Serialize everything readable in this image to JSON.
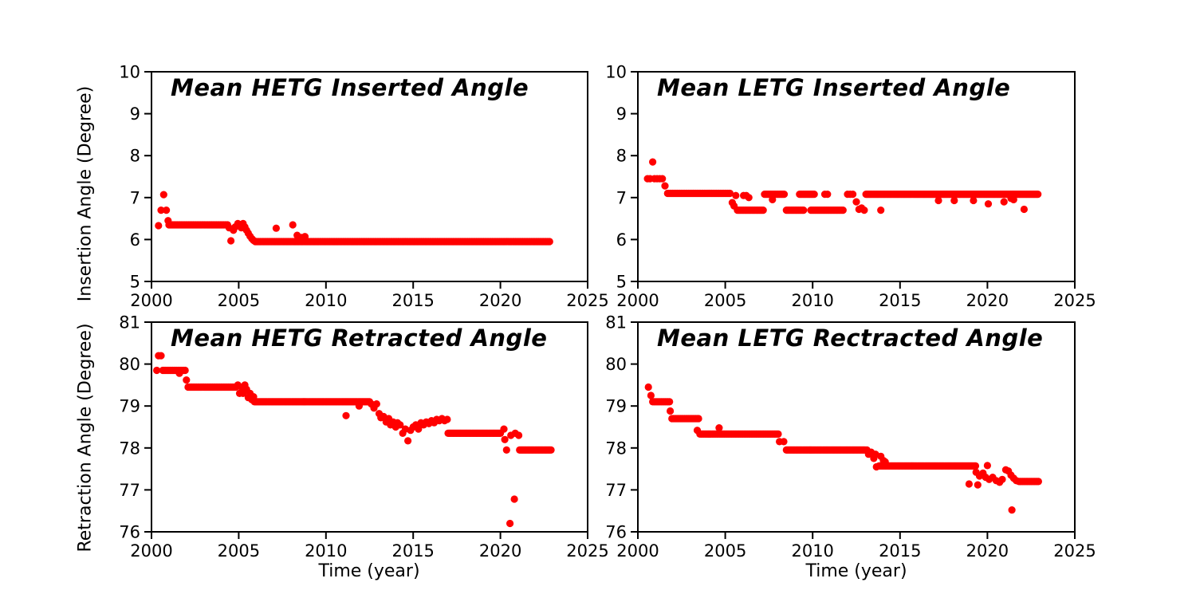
{
  "figure": {
    "background": "#ffffff",
    "axis_color": "#000000",
    "marker_color": "#ff0000"
  },
  "chart_data": [
    {
      "id": "hetg-inserted",
      "type": "scatter",
      "title": "Mean HETG Inserted Angle",
      "xlabel": "",
      "ylabel": "Insertion Angle (Degree)",
      "xlim": [
        2000,
        2025
      ],
      "ylim": [
        5,
        10
      ],
      "x_ticks": [
        2000,
        2005,
        2010,
        2015,
        2020,
        2025
      ],
      "y_ticks": [
        5,
        6,
        7,
        8,
        9,
        10
      ],
      "grid": false,
      "legend": "none",
      "marker_color": "#ff0000",
      "series": [
        {
          "name": "mean inserted angle",
          "plateaus": [
            {
              "x0": 2001.0,
              "x1": 2004.35,
              "y": 6.35,
              "step": 0.07
            },
            {
              "x0": 2005.95,
              "x1": 2022.85,
              "y": 5.95,
              "step": 0.07
            }
          ],
          "points": [
            [
              2000.4,
              6.33
            ],
            [
              2000.55,
              6.7
            ],
            [
              2000.7,
              7.07
            ],
            [
              2000.85,
              6.7
            ],
            [
              2000.95,
              6.45
            ],
            [
              2004.45,
              6.28
            ],
            [
              2004.55,
              5.97
            ],
            [
              2004.7,
              6.22
            ],
            [
              2004.8,
              6.3
            ],
            [
              2004.95,
              6.38
            ],
            [
              2005.05,
              6.35
            ],
            [
              2005.15,
              6.28
            ],
            [
              2005.25,
              6.38
            ],
            [
              2005.35,
              6.3
            ],
            [
              2005.45,
              6.22
            ],
            [
              2005.55,
              6.15
            ],
            [
              2005.65,
              6.08
            ],
            [
              2005.75,
              6.02
            ],
            [
              2005.85,
              5.98
            ],
            [
              2007.15,
              6.27
            ],
            [
              2008.1,
              6.35
            ],
            [
              2008.35,
              6.1
            ],
            [
              2008.6,
              6.05
            ],
            [
              2008.8,
              6.07
            ]
          ]
        }
      ]
    },
    {
      "id": "letg-inserted",
      "type": "scatter",
      "title": "Mean LETG Inserted Angle",
      "xlabel": "",
      "ylabel": "",
      "xlim": [
        2000,
        2025
      ],
      "ylim": [
        5,
        10
      ],
      "x_ticks": [
        2000,
        2005,
        2010,
        2015,
        2020,
        2025
      ],
      "y_ticks": [
        5,
        6,
        7,
        8,
        9,
        10
      ],
      "grid": false,
      "legend": "none",
      "marker_color": "#ff0000",
      "series": [
        {
          "name": "mean inserted angle",
          "plateaus": [
            {
              "x0": 2001.7,
              "x1": 2005.3,
              "y": 7.1,
              "step": 0.07
            },
            {
              "x0": 2005.7,
              "x1": 2007.15,
              "y": 6.7,
              "step": 0.07
            },
            {
              "x0": 2007.25,
              "x1": 2008.35,
              "y": 7.08,
              "step": 0.07
            },
            {
              "x0": 2008.5,
              "x1": 2009.5,
              "y": 6.7,
              "step": 0.07
            },
            {
              "x0": 2009.25,
              "x1": 2010.1,
              "y": 7.08,
              "step": 0.07
            },
            {
              "x0": 2009.9,
              "x1": 2011.75,
              "y": 6.7,
              "step": 0.08
            },
            {
              "x0": 2013.05,
              "x1": 2022.9,
              "y": 7.08,
              "step": 0.06
            }
          ],
          "points": [
            [
              2000.55,
              7.45
            ],
            [
              2000.7,
              7.45
            ],
            [
              2000.85,
              7.85
            ],
            [
              2000.95,
              7.45
            ],
            [
              2001.1,
              7.45
            ],
            [
              2001.25,
              7.45
            ],
            [
              2001.4,
              7.45
            ],
            [
              2001.55,
              7.28
            ],
            [
              2005.4,
              6.88
            ],
            [
              2005.5,
              6.8
            ],
            [
              2005.6,
              7.05
            ],
            [
              2006.05,
              7.05
            ],
            [
              2006.2,
              7.05
            ],
            [
              2006.35,
              7.0
            ],
            [
              2007.7,
              6.95
            ],
            [
              2010.7,
              7.08
            ],
            [
              2010.85,
              7.08
            ],
            [
              2012.0,
              7.08
            ],
            [
              2012.15,
              7.08
            ],
            [
              2012.3,
              7.08
            ],
            [
              2012.5,
              6.9
            ],
            [
              2012.65,
              6.72
            ],
            [
              2012.8,
              6.75
            ],
            [
              2012.95,
              6.7
            ],
            [
              2013.9,
              6.7
            ],
            [
              2017.2,
              6.93
            ],
            [
              2018.1,
              6.93
            ],
            [
              2019.2,
              6.93
            ],
            [
              2020.05,
              6.85
            ],
            [
              2020.95,
              6.9
            ],
            [
              2021.35,
              6.98
            ],
            [
              2021.5,
              6.95
            ],
            [
              2022.1,
              6.72
            ]
          ]
        }
      ]
    },
    {
      "id": "hetg-retracted",
      "type": "scatter",
      "title": "Mean HETG Retracted Angle",
      "xlabel": "Time (year)",
      "ylabel": "Retraction Angle (Degree)",
      "xlim": [
        2000,
        2025
      ],
      "ylim": [
        76,
        81
      ],
      "x_ticks": [
        2000,
        2005,
        2010,
        2015,
        2020,
        2025
      ],
      "y_ticks": [
        76,
        77,
        78,
        79,
        80,
        81
      ],
      "grid": false,
      "legend": "none",
      "marker_color": "#ff0000",
      "series": [
        {
          "name": "mean retracted angle",
          "plateaus": [
            {
              "x0": 2000.65,
              "x1": 2001.9,
              "y": 79.85,
              "step": 0.08
            },
            {
              "x0": 2002.1,
              "x1": 2004.85,
              "y": 79.45,
              "step": 0.07
            },
            {
              "x0": 2005.9,
              "x1": 2012.5,
              "y": 79.1,
              "step": 0.06
            },
            {
              "x0": 2017.0,
              "x1": 2020.0,
              "y": 78.35,
              "step": 0.06
            },
            {
              "x0": 2021.1,
              "x1": 2022.9,
              "y": 77.95,
              "step": 0.06
            }
          ],
          "points": [
            [
              2000.3,
              79.85
            ],
            [
              2000.4,
              80.2
            ],
            [
              2000.55,
              80.2
            ],
            [
              2001.6,
              79.78
            ],
            [
              2002.0,
              79.62
            ],
            [
              2004.95,
              79.5
            ],
            [
              2005.05,
              79.3
            ],
            [
              2005.15,
              79.45
            ],
            [
              2005.25,
              79.3
            ],
            [
              2005.35,
              79.5
            ],
            [
              2005.45,
              79.4
            ],
            [
              2005.55,
              79.2
            ],
            [
              2005.65,
              79.3
            ],
            [
              2005.75,
              79.15
            ],
            [
              2005.85,
              79.22
            ],
            [
              2011.15,
              78.77
            ],
            [
              2011.9,
              79.0
            ],
            [
              2012.6,
              79.05
            ],
            [
              2012.75,
              78.95
            ],
            [
              2012.9,
              79.05
            ],
            [
              2013.05,
              78.82
            ],
            [
              2013.15,
              78.72
            ],
            [
              2013.3,
              78.75
            ],
            [
              2013.45,
              78.62
            ],
            [
              2013.6,
              78.7
            ],
            [
              2013.7,
              78.55
            ],
            [
              2013.85,
              78.62
            ],
            [
              2014.0,
              78.5
            ],
            [
              2014.1,
              78.6
            ],
            [
              2014.25,
              78.55
            ],
            [
              2014.4,
              78.35
            ],
            [
              2014.55,
              78.45
            ],
            [
              2014.7,
              78.17
            ],
            [
              2014.85,
              78.42
            ],
            [
              2015.0,
              78.5
            ],
            [
              2015.15,
              78.55
            ],
            [
              2015.3,
              78.45
            ],
            [
              2015.45,
              78.6
            ],
            [
              2015.6,
              78.55
            ],
            [
              2015.75,
              78.62
            ],
            [
              2015.9,
              78.58
            ],
            [
              2016.05,
              78.65
            ],
            [
              2016.2,
              78.6
            ],
            [
              2016.35,
              78.68
            ],
            [
              2016.5,
              78.65
            ],
            [
              2016.65,
              78.7
            ],
            [
              2016.8,
              78.65
            ],
            [
              2016.95,
              78.68
            ],
            [
              2020.2,
              78.45
            ],
            [
              2020.25,
              78.2
            ],
            [
              2020.35,
              77.95
            ],
            [
              2020.6,
              78.3
            ],
            [
              2020.85,
              78.35
            ],
            [
              2021.05,
              78.3
            ],
            [
              2020.55,
              76.2
            ],
            [
              2020.8,
              76.78
            ]
          ]
        }
      ]
    },
    {
      "id": "letg-retracted",
      "type": "scatter",
      "title": "Mean LETG Rectracted Angle",
      "xlabel": "Time (year)",
      "ylabel": "",
      "xlim": [
        2000,
        2025
      ],
      "ylim": [
        76,
        81
      ],
      "x_ticks": [
        2000,
        2005,
        2010,
        2015,
        2020,
        2025
      ],
      "y_ticks": [
        76,
        77,
        78,
        79,
        80,
        81
      ],
      "grid": false,
      "legend": "none",
      "marker_color": "#ff0000",
      "series": [
        {
          "name": "mean retracted angle",
          "plateaus": [
            {
              "x0": 2000.85,
              "x1": 2001.8,
              "y": 79.1,
              "step": 0.08
            },
            {
              "x0": 2001.95,
              "x1": 2003.45,
              "y": 78.7,
              "step": 0.08
            },
            {
              "x0": 2003.55,
              "x1": 2008.05,
              "y": 78.33,
              "step": 0.07
            },
            {
              "x0": 2008.5,
              "x1": 2013.0,
              "y": 77.95,
              "step": 0.06
            },
            {
              "x0": 2013.8,
              "x1": 2019.3,
              "y": 77.57,
              "step": 0.06
            },
            {
              "x0": 2021.8,
              "x1": 2022.95,
              "y": 77.2,
              "step": 0.07
            }
          ],
          "points": [
            [
              2000.6,
              79.45
            ],
            [
              2000.75,
              79.25
            ],
            [
              2001.85,
              78.88
            ],
            [
              2003.4,
              78.42
            ],
            [
              2004.65,
              78.48
            ],
            [
              2008.1,
              78.15
            ],
            [
              2008.35,
              78.15
            ],
            [
              2013.1,
              77.95
            ],
            [
              2013.2,
              77.85
            ],
            [
              2013.35,
              77.9
            ],
            [
              2013.5,
              77.75
            ],
            [
              2013.6,
              77.85
            ],
            [
              2013.65,
              77.55
            ],
            [
              2013.9,
              77.8
            ],
            [
              2014.05,
              77.7
            ],
            [
              2014.15,
              77.67
            ],
            [
              2018.95,
              77.14
            ],
            [
              2019.35,
              77.42
            ],
            [
              2019.45,
              77.12
            ],
            [
              2019.55,
              77.33
            ],
            [
              2019.75,
              77.4
            ],
            [
              2019.9,
              77.3
            ],
            [
              2020.0,
              77.58
            ],
            [
              2020.1,
              77.25
            ],
            [
              2020.3,
              77.3
            ],
            [
              2020.5,
              77.22
            ],
            [
              2020.7,
              77.18
            ],
            [
              2020.85,
              77.25
            ],
            [
              2021.05,
              77.48
            ],
            [
              2021.2,
              77.45
            ],
            [
              2021.35,
              77.35
            ],
            [
              2021.5,
              77.28
            ],
            [
              2021.65,
              77.22
            ],
            [
              2021.4,
              76.52
            ]
          ]
        }
      ]
    }
  ]
}
